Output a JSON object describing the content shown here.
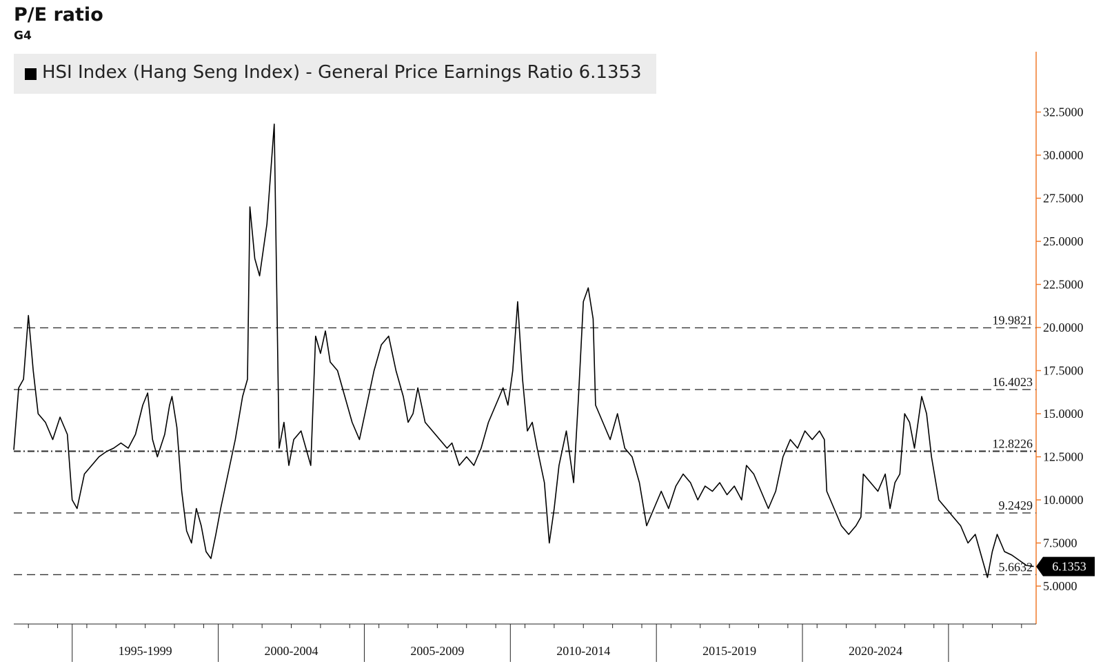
{
  "header": {
    "title": "P/E ratio",
    "subtitle": "G4"
  },
  "legend": {
    "text": "HSI Index (Hang Seng Index) - General Price Earnings Ratio 6.1353"
  },
  "colors": {
    "series": "#000000",
    "axis": "#f07a2a",
    "reference": "#333333",
    "legend_bg": "#ececec"
  },
  "chart_data": {
    "type": "line",
    "title": "P/E ratio",
    "series": [
      {
        "name": "HSI Index (Hang Seng Index) - General Price Earnings Ratio",
        "last_value": 6.1353,
        "points": [
          [
            "1993-01",
            12.9
          ],
          [
            "1993-03",
            16.5
          ],
          [
            "1993-05",
            17.0
          ],
          [
            "1993-07",
            20.7
          ],
          [
            "1993-09",
            17.5
          ],
          [
            "1993-11",
            15.0
          ],
          [
            "1994-02",
            14.5
          ],
          [
            "1994-05",
            13.5
          ],
          [
            "1994-08",
            14.8
          ],
          [
            "1994-11",
            13.8
          ],
          [
            "1995-01",
            10.0
          ],
          [
            "1995-03",
            9.5
          ],
          [
            "1995-06",
            11.5
          ],
          [
            "1995-09",
            12.0
          ],
          [
            "1995-12",
            12.5
          ],
          [
            "1996-03",
            12.8
          ],
          [
            "1996-06",
            13.0
          ],
          [
            "1996-09",
            13.3
          ],
          [
            "1996-12",
            13.0
          ],
          [
            "1997-03",
            13.8
          ],
          [
            "1997-06",
            15.5
          ],
          [
            "1997-08",
            16.2
          ],
          [
            "1997-10",
            13.5
          ],
          [
            "1997-12",
            12.5
          ],
          [
            "1998-03",
            13.8
          ],
          [
            "1998-05",
            15.5
          ],
          [
            "1998-06",
            16.0
          ],
          [
            "1998-08",
            14.2
          ],
          [
            "1998-10",
            10.5
          ],
          [
            "1998-12",
            8.2
          ],
          [
            "1999-02",
            7.5
          ],
          [
            "1999-04",
            9.5
          ],
          [
            "1999-06",
            8.5
          ],
          [
            "1999-08",
            7.0
          ],
          [
            "1999-10",
            6.6
          ],
          [
            "1999-12",
            8.0
          ],
          [
            "2000-02",
            9.5
          ],
          [
            "2000-05",
            11.5
          ],
          [
            "2000-08",
            13.5
          ],
          [
            "2000-11",
            16.0
          ],
          [
            "2001-01",
            17.0
          ],
          [
            "2001-02",
            27.0
          ],
          [
            "2001-04",
            24.0
          ],
          [
            "2001-06",
            23.0
          ],
          [
            "2001-09",
            26.0
          ],
          [
            "2001-12",
            31.8
          ],
          [
            "2002-02",
            13.0
          ],
          [
            "2002-04",
            14.5
          ],
          [
            "2002-06",
            12.0
          ],
          [
            "2002-08",
            13.5
          ],
          [
            "2002-11",
            14.0
          ],
          [
            "2003-03",
            12.0
          ],
          [
            "2003-05",
            19.5
          ],
          [
            "2003-07",
            18.5
          ],
          [
            "2003-09",
            19.8
          ],
          [
            "2003-11",
            18.0
          ],
          [
            "2004-02",
            17.5
          ],
          [
            "2004-05",
            16.0
          ],
          [
            "2004-08",
            14.5
          ],
          [
            "2004-11",
            13.5
          ],
          [
            "2005-02",
            15.5
          ],
          [
            "2005-05",
            17.5
          ],
          [
            "2005-08",
            19.0
          ],
          [
            "2005-11",
            19.5
          ],
          [
            "2006-02",
            17.5
          ],
          [
            "2006-05",
            16.0
          ],
          [
            "2006-07",
            14.5
          ],
          [
            "2006-09",
            15.0
          ],
          [
            "2006-11",
            16.5
          ],
          [
            "2007-02",
            14.5
          ],
          [
            "2007-05",
            14.0
          ],
          [
            "2007-08",
            13.5
          ],
          [
            "2007-11",
            13.0
          ],
          [
            "2008-01",
            13.3
          ],
          [
            "2008-04",
            12.0
          ],
          [
            "2008-07",
            12.5
          ],
          [
            "2008-10",
            12.0
          ],
          [
            "2009-01",
            13.0
          ],
          [
            "2009-04",
            14.5
          ],
          [
            "2009-07",
            15.5
          ],
          [
            "2009-10",
            16.5
          ],
          [
            "2009-12",
            15.5
          ],
          [
            "2010-02",
            17.5
          ],
          [
            "2010-04",
            21.5
          ],
          [
            "2010-06",
            17.0
          ],
          [
            "2010-08",
            14.0
          ],
          [
            "2010-10",
            14.5
          ],
          [
            "2010-12",
            13.0
          ],
          [
            "2011-03",
            11.0
          ],
          [
            "2011-05",
            7.5
          ],
          [
            "2011-07",
            9.5
          ],
          [
            "2011-09",
            12.0
          ],
          [
            "2011-12",
            14.0
          ],
          [
            "2012-03",
            11.0
          ],
          [
            "2012-05",
            16.0
          ],
          [
            "2012-07",
            21.5
          ],
          [
            "2012-09",
            22.3
          ],
          [
            "2012-11",
            20.5
          ],
          [
            "2012-12",
            15.5
          ],
          [
            "2013-03",
            14.5
          ],
          [
            "2013-06",
            13.5
          ],
          [
            "2013-09",
            15.0
          ],
          [
            "2013-12",
            13.0
          ],
          [
            "2014-03",
            12.5
          ],
          [
            "2014-06",
            11.0
          ],
          [
            "2014-09",
            8.5
          ],
          [
            "2014-12",
            9.5
          ],
          [
            "2015-03",
            10.5
          ],
          [
            "2015-06",
            9.5
          ],
          [
            "2015-09",
            10.8
          ],
          [
            "2015-12",
            11.5
          ],
          [
            "2016-03",
            11.0
          ],
          [
            "2016-06",
            10.0
          ],
          [
            "2016-09",
            10.8
          ],
          [
            "2016-12",
            10.5
          ],
          [
            "2017-03",
            11.0
          ],
          [
            "2017-06",
            10.3
          ],
          [
            "2017-09",
            10.8
          ],
          [
            "2017-12",
            10.0
          ],
          [
            "2018-02",
            12.0
          ],
          [
            "2018-05",
            11.5
          ],
          [
            "2018-08",
            10.5
          ],
          [
            "2018-11",
            9.5
          ],
          [
            "2019-02",
            10.5
          ],
          [
            "2019-05",
            12.5
          ],
          [
            "2019-08",
            13.5
          ],
          [
            "2019-11",
            13.0
          ],
          [
            "2020-02",
            14.0
          ],
          [
            "2020-05",
            13.5
          ],
          [
            "2020-08",
            14.0
          ],
          [
            "2020-10",
            13.5
          ],
          [
            "2020-11",
            10.5
          ],
          [
            "2021-02",
            9.5
          ],
          [
            "2021-05",
            8.5
          ],
          [
            "2021-08",
            8.0
          ],
          [
            "2021-11",
            8.5
          ],
          [
            "2022-01",
            9.0
          ],
          [
            "2022-02",
            11.5
          ],
          [
            "2022-05",
            11.0
          ],
          [
            "2022-08",
            10.5
          ],
          [
            "2022-11",
            11.5
          ],
          [
            "2023-01",
            9.5
          ],
          [
            "2023-03",
            11.0
          ],
          [
            "2023-05",
            11.5
          ],
          [
            "2023-07",
            15.0
          ],
          [
            "2023-09",
            14.5
          ],
          [
            "2023-11",
            13.0
          ],
          [
            "2024-02",
            16.0
          ],
          [
            "2024-04",
            15.0
          ],
          [
            "2024-06",
            12.5
          ],
          [
            "2024-09",
            10.0
          ],
          [
            "2024-12",
            9.5
          ],
          [
            "2025-03",
            9.0
          ],
          [
            "2025-06",
            8.5
          ],
          [
            "2025-09",
            7.5
          ],
          [
            "2025-12",
            8.0
          ],
          [
            "2026-03",
            6.5
          ],
          [
            "2026-05",
            5.5
          ],
          [
            "2026-07",
            7.0
          ],
          [
            "2026-09",
            8.0
          ],
          [
            "2026-12",
            7.0
          ],
          [
            "2027-03",
            6.8
          ],
          [
            "2027-06",
            6.5
          ],
          [
            "2027-09",
            6.2
          ],
          [
            "2027-12",
            6.1353
          ]
        ]
      }
    ],
    "reference_lines": [
      {
        "label": "19.9821",
        "value": 19.9821,
        "style": "dashed"
      },
      {
        "label": "16.4023",
        "value": 16.4023,
        "style": "dashed"
      },
      {
        "label": "12.8226",
        "value": 12.8226,
        "style": "dashdot"
      },
      {
        "label": "9.2429",
        "value": 9.2429,
        "style": "dashed"
      },
      {
        "label": "5.6632",
        "value": 5.6632,
        "style": "dashed"
      }
    ],
    "y_ticks": [
      "5.0000",
      "7.5000",
      "10.0000",
      "12.5000",
      "15.0000",
      "17.5000",
      "20.0000",
      "22.5000",
      "25.0000",
      "27.5000",
      "30.0000",
      "32.5000"
    ],
    "ylim": [
      2.8,
      36.0
    ],
    "x_periods": [
      "1995-1999",
      "2000-2004",
      "2005-2009",
      "2010-2014",
      "2015-2019",
      "2020-2024"
    ],
    "xlim": [
      "1993-01",
      "2028-01"
    ],
    "y_axis_side": "right",
    "grid": false,
    "legend_position": "top-left"
  }
}
